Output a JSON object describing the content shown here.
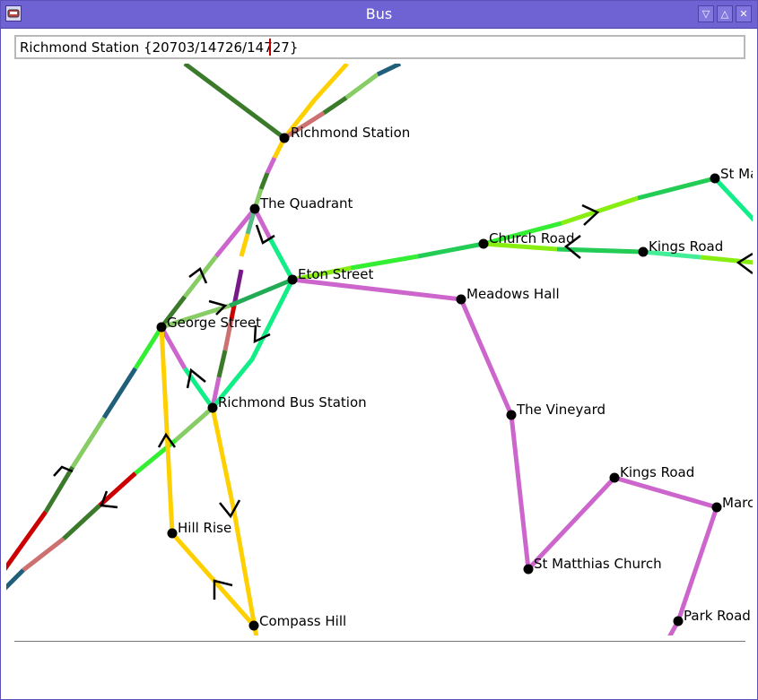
{
  "window": {
    "title": "Bus",
    "menu_icon": "window-menu-icon",
    "buttons": [
      "minimize-icon",
      "maximize-icon",
      "close-icon"
    ],
    "title_color": "#6f63d3"
  },
  "search": {
    "value": "Richmond Station {20703/14726/14727}",
    "placeholder": ""
  },
  "map": {
    "stops": [
      {
        "id": "richmond-station",
        "label": "Richmond Station"
      },
      {
        "id": "the-quadrant",
        "label": "The Quadrant"
      },
      {
        "id": "eton-street",
        "label": "Eton Street"
      },
      {
        "id": "george-street",
        "label": "George Street"
      },
      {
        "id": "richmond-bus-station",
        "label": "Richmond Bus Station"
      },
      {
        "id": "church-road",
        "label": "Church Road"
      },
      {
        "id": "kings-road-east",
        "label": "Kings Road"
      },
      {
        "id": "st-ma",
        "label": "St Ma"
      },
      {
        "id": "meadows-hall",
        "label": "Meadows Hall"
      },
      {
        "id": "the-vineyard",
        "label": "The Vineyard"
      },
      {
        "id": "kings-road-south",
        "label": "Kings Road"
      },
      {
        "id": "marc",
        "label": "Marc"
      },
      {
        "id": "st-matthias-church",
        "label": "St Matthias Church"
      },
      {
        "id": "hill-rise",
        "label": "Hill Rise"
      },
      {
        "id": "compass-hill",
        "label": "Compass Hill"
      },
      {
        "id": "park-road",
        "label": "Park Road"
      }
    ],
    "route_colors": {
      "dark_green": "#3a7a2a",
      "yellow": "#ffd000",
      "rose": "#cc7070",
      "light_green": "#88cc66",
      "teal_blue": "#1f5f7a",
      "bright_green": "#33ee33",
      "mint": "#11ee88",
      "mid_green": "#22cc55",
      "purple": "#cc66cc",
      "red": "#cc0000",
      "lime": "#88ee11",
      "dark_purple": "#771a88"
    }
  },
  "status": {
    "text": ""
  }
}
